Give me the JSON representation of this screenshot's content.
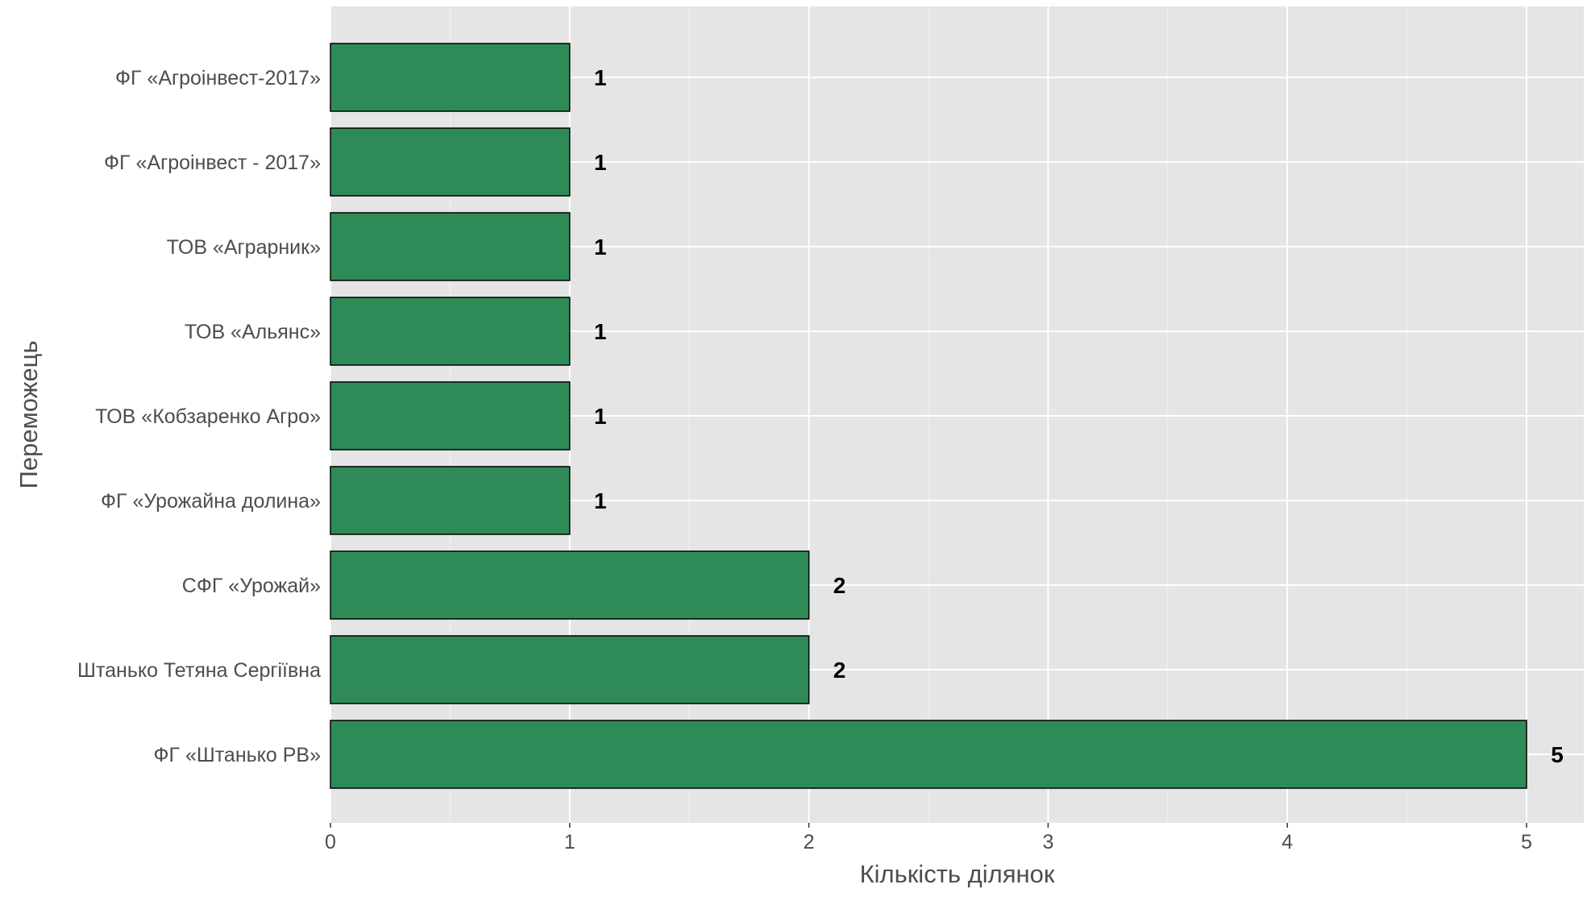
{
  "chart_data": {
    "type": "bar",
    "orientation": "horizontal",
    "categories": [
      "ФГ «Агроінвест-2017»",
      "ФГ «Агроінвест - 2017»",
      "ТОВ «Аграрник»",
      "ТОВ «Альянс»",
      "ТОВ «Кобзаренко Агро»",
      "ФГ «Урожайна долина»",
      "СФГ «Урожай»",
      "Штанько Тетяна Сергіївна",
      "ФГ «Штанько РВ»"
    ],
    "values": [
      1,
      1,
      1,
      1,
      1,
      1,
      2,
      2,
      5
    ],
    "xlabel": "Кількість ділянок",
    "ylabel": "Переможець",
    "xlim": [
      0,
      5.25
    ],
    "x_ticks": [
      0,
      1,
      2,
      3,
      4,
      5
    ],
    "grid": true,
    "data_labels": true,
    "colors": {
      "bar_fill": "#2e8b57",
      "bar_stroke": "#000000",
      "panel_background": "#e5e5e5",
      "grid_line": "#ffffff"
    }
  }
}
